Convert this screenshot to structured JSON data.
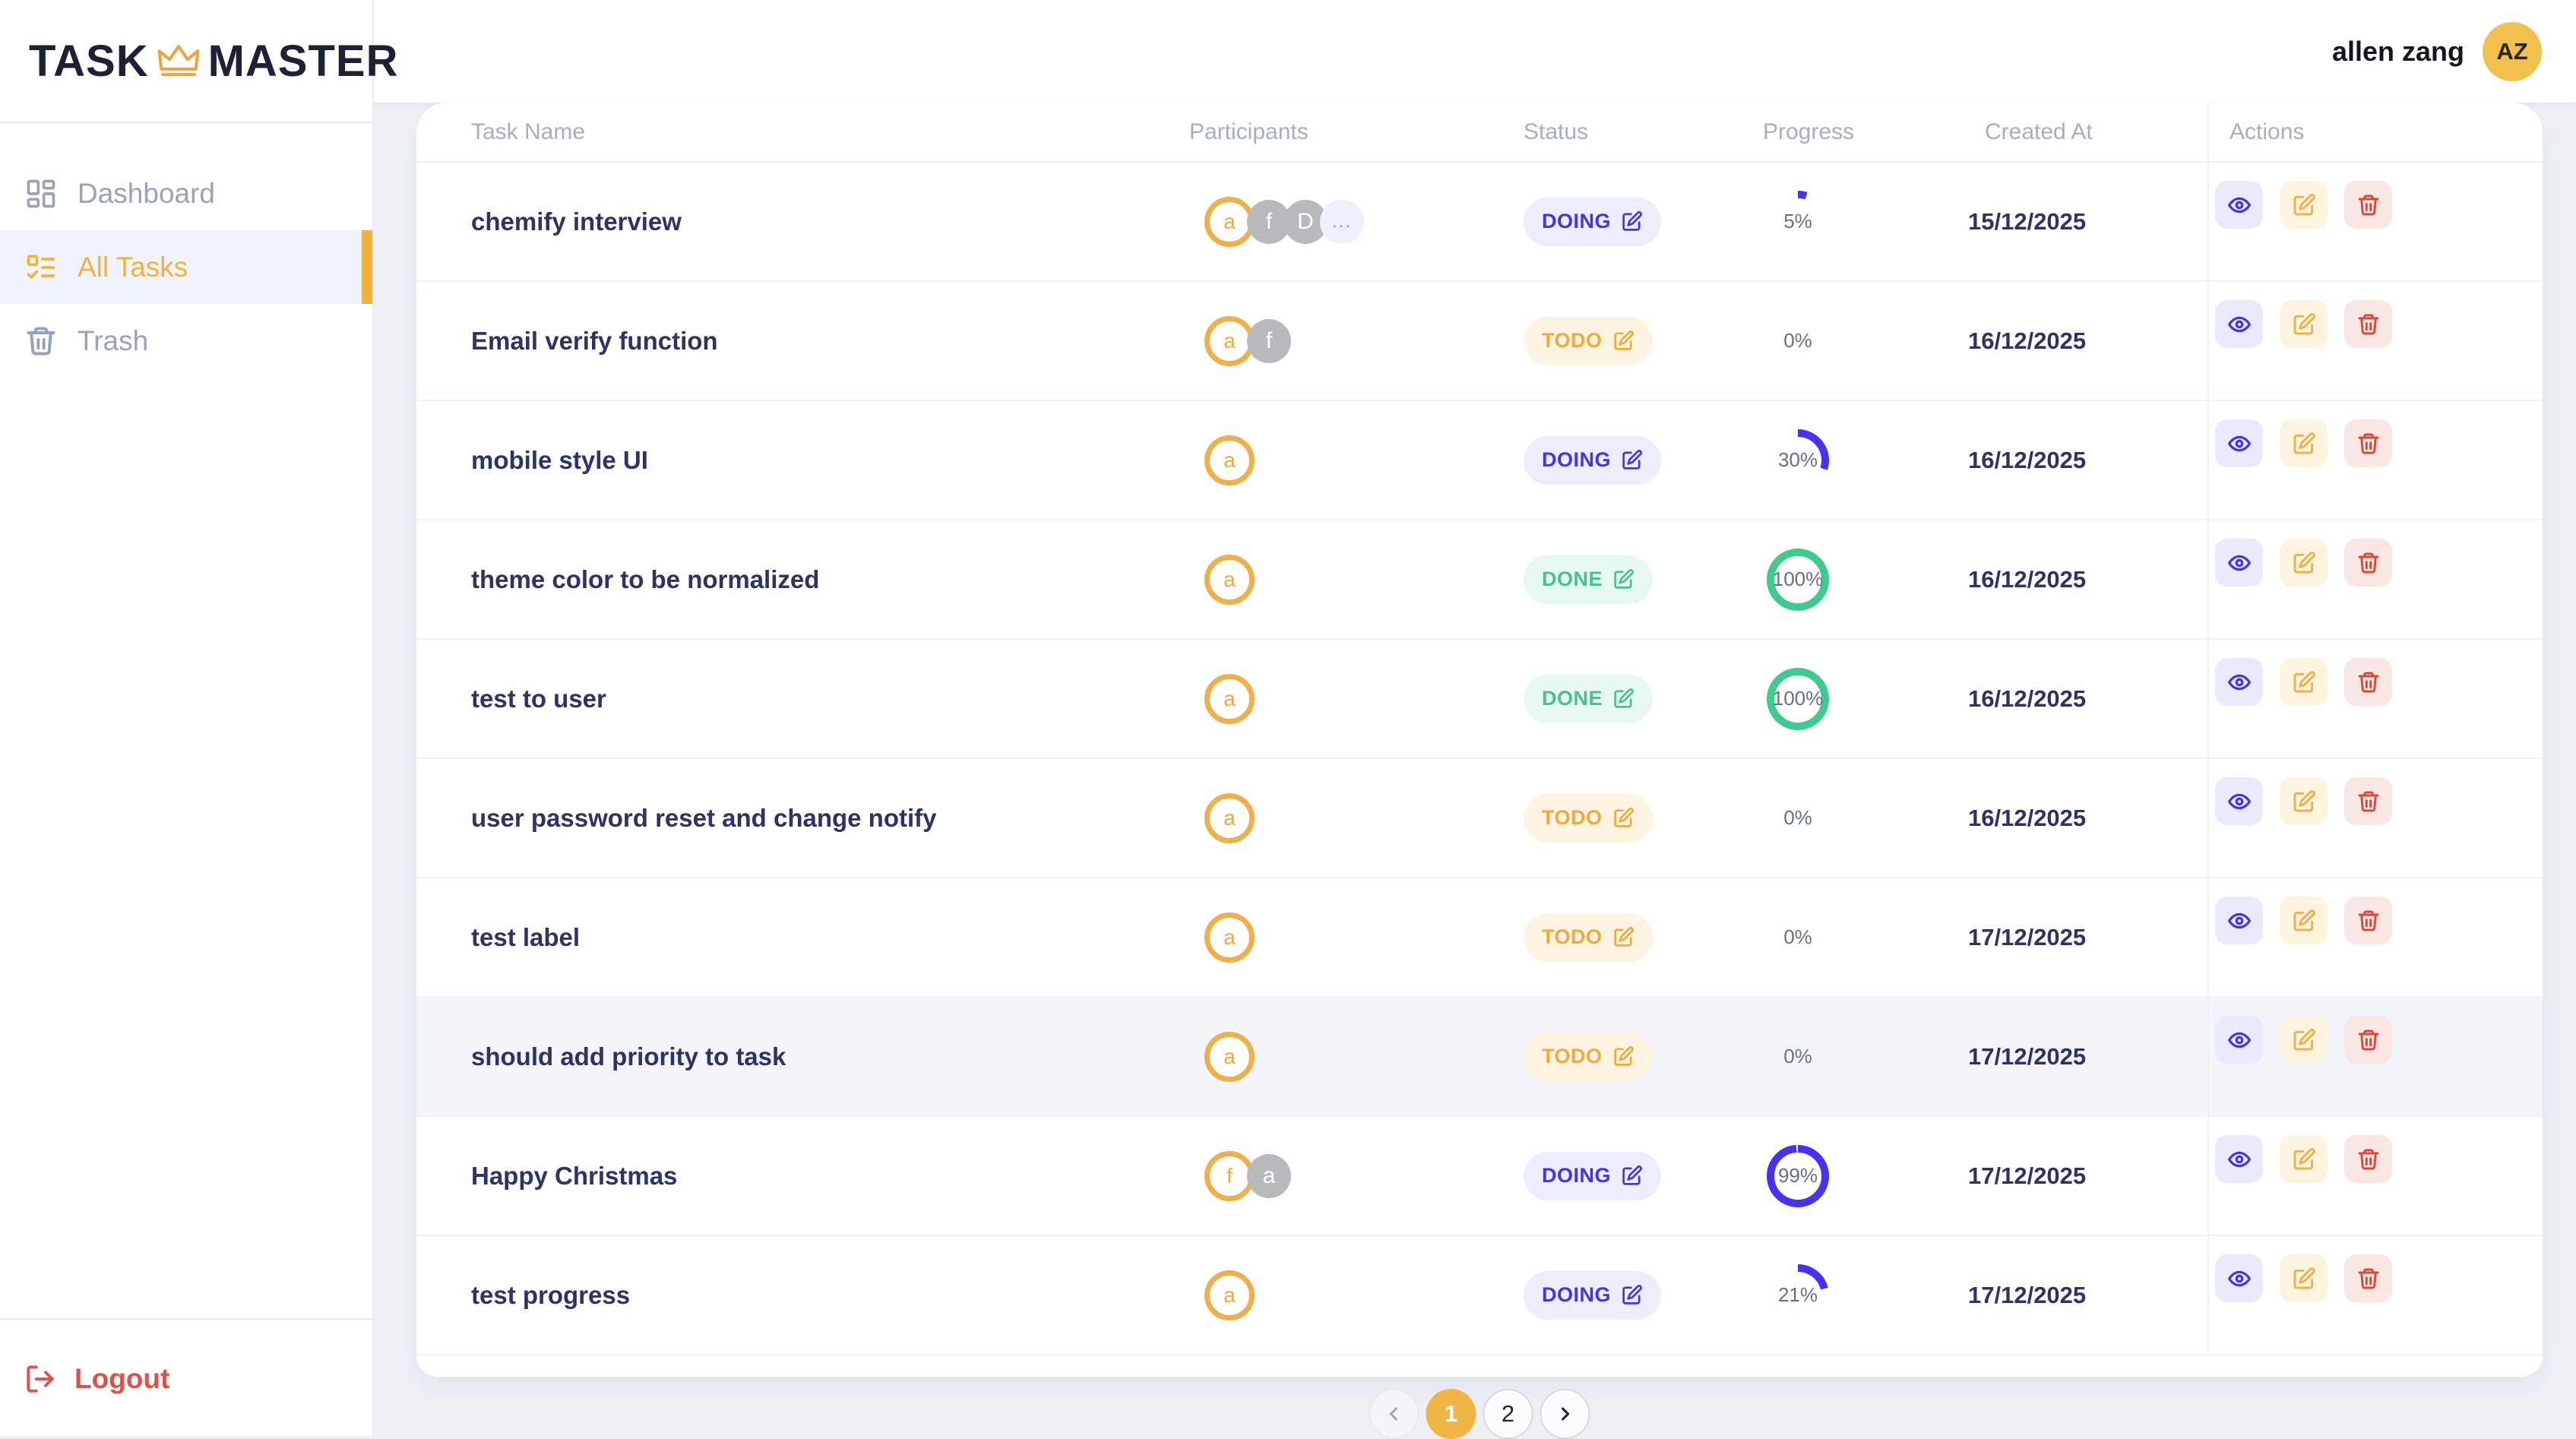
{
  "brand": {
    "left": "TASK",
    "right": "MASTER",
    "crown_icon": "crown-icon"
  },
  "user": {
    "name": "allen zang",
    "initials": "AZ"
  },
  "sidebar": {
    "items": [
      {
        "label": "Dashboard",
        "icon": "dashboard-icon",
        "active": false
      },
      {
        "label": "All Tasks",
        "icon": "task-list-icon",
        "active": true
      },
      {
        "label": "Trash",
        "icon": "trash-icon",
        "active": false
      }
    ],
    "logout_label": "Logout"
  },
  "table": {
    "columns": [
      "Task Name",
      "Participants",
      "Status",
      "Progress",
      "Created At",
      "Actions"
    ],
    "rows": [
      {
        "name": "chemify interview",
        "participants": [
          {
            "letter": "a",
            "style": "owner"
          },
          {
            "letter": "f",
            "style": "member"
          },
          {
            "letter": "D",
            "style": "member"
          },
          {
            "letter": "...",
            "style": "more"
          }
        ],
        "status": "DOING",
        "progress": 5,
        "created": "15/12/2025",
        "highlighted": false
      },
      {
        "name": "Email verify function",
        "participants": [
          {
            "letter": "a",
            "style": "owner"
          },
          {
            "letter": "f",
            "style": "member"
          }
        ],
        "status": "TODO",
        "progress": 0,
        "created": "16/12/2025",
        "highlighted": false
      },
      {
        "name": "mobile style UI",
        "participants": [
          {
            "letter": "a",
            "style": "owner"
          }
        ],
        "status": "DOING",
        "progress": 30,
        "created": "16/12/2025",
        "highlighted": false
      },
      {
        "name": "theme color to be normalized",
        "participants": [
          {
            "letter": "a",
            "style": "owner"
          }
        ],
        "status": "DONE",
        "progress": 100,
        "created": "16/12/2025",
        "highlighted": false
      },
      {
        "name": "test to user",
        "participants": [
          {
            "letter": "a",
            "style": "owner"
          }
        ],
        "status": "DONE",
        "progress": 100,
        "created": "16/12/2025",
        "highlighted": false
      },
      {
        "name": "user password reset and change notify",
        "participants": [
          {
            "letter": "a",
            "style": "owner"
          }
        ],
        "status": "TODO",
        "progress": 0,
        "created": "16/12/2025",
        "highlighted": false
      },
      {
        "name": "test label",
        "participants": [
          {
            "letter": "a",
            "style": "owner"
          }
        ],
        "status": "TODO",
        "progress": 0,
        "created": "17/12/2025",
        "highlighted": false
      },
      {
        "name": "should add priority to task",
        "participants": [
          {
            "letter": "a",
            "style": "owner"
          }
        ],
        "status": "TODO",
        "progress": 0,
        "created": "17/12/2025",
        "highlighted": true
      },
      {
        "name": "Happy Christmas",
        "participants": [
          {
            "letter": "f",
            "style": "owner"
          },
          {
            "letter": "a",
            "style": "member"
          }
        ],
        "status": "DOING",
        "progress": 99,
        "created": "17/12/2025",
        "highlighted": false
      },
      {
        "name": "test progress",
        "participants": [
          {
            "letter": "a",
            "style": "owner"
          }
        ],
        "status": "DOING",
        "progress": 21,
        "created": "17/12/2025",
        "highlighted": false
      }
    ],
    "row_actions": [
      "view",
      "edit",
      "delete"
    ]
  },
  "pagination": {
    "pages": [
      "1",
      "2"
    ],
    "current": "1"
  },
  "colors": {
    "accent_yellow": "#f0b43e",
    "status_doing": "#4431f2",
    "status_doing_bg": "#ecedfd",
    "status_todo": "#f2a93b",
    "status_todo_bg": "#fdf3e1",
    "status_done": "#47c18f",
    "status_done_bg": "#e6f8f0",
    "progress_ring": "#4632f0",
    "progress_ring_done": "#3fcb90",
    "logout_red": "#dd5246",
    "delete_red": "#d9483a",
    "task_text": "#2d3364",
    "avatar_yellow": "#f2c14d"
  }
}
